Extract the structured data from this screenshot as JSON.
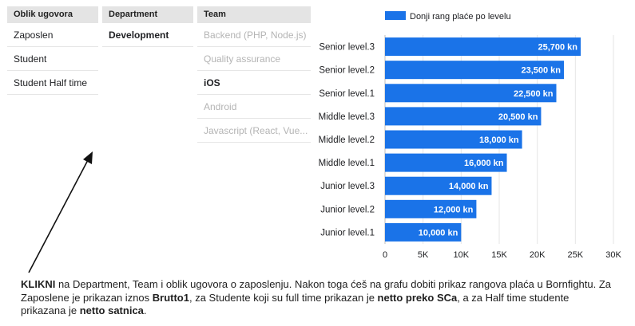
{
  "filters": {
    "oblik": {
      "header": "Oblik ugovora",
      "items": [
        "Zaposlen",
        "Student",
        "Student Half time"
      ]
    },
    "department": {
      "header": "Department",
      "items": [
        "Development"
      ]
    },
    "team": {
      "header": "Team",
      "items": [
        "Backend (PHP, Node.js)",
        "Quality assurance",
        "iOS",
        "Android",
        "Javascript (React, Vue..."
      ],
      "selected": "iOS"
    }
  },
  "chart_data": {
    "type": "bar",
    "orientation": "horizontal",
    "legend": "Donji rang plaće po levelu",
    "legend_position": "top",
    "bar_color": "#1a73e8",
    "categories": [
      "Senior level.3",
      "Senior level.2",
      "Senior level.1",
      "Middle level.3",
      "Middle level.2",
      "Middle level.1",
      "Junior level.3",
      "Junior level.2",
      "Junior level.1"
    ],
    "values": [
      25700,
      23500,
      22500,
      20500,
      18000,
      16000,
      14000,
      12000,
      10000
    ],
    "value_labels": [
      "25,700 kn",
      "23,500 kn",
      "22,500 kn",
      "20,500 kn",
      "18,000 kn",
      "16,000 kn",
      "14,000 kn",
      "12,000 kn",
      "10,000 kn"
    ],
    "xlim": [
      0,
      30000
    ],
    "xticks": [
      0,
      5000,
      10000,
      15000,
      20000,
      25000,
      30000
    ],
    "xtick_labels": [
      "0",
      "5K",
      "10K",
      "15K",
      "20K",
      "25K",
      "30K"
    ],
    "grid": true
  },
  "instructions": {
    "t1": "KLIKNI",
    "t2": " na Department, Team i oblik ugovora o zaposlenju. Nakon toga ćeš na grafu dobiti prikaz rangova plaća u Bornfightu. Za Zaposlene je prikazan iznos ",
    "t3": "Brutto1",
    "t4": ", za Studente koji su full time prikazan je ",
    "t5": "netto preko SCa",
    "t6": ", a za Half time studente prikazana je ",
    "t7": "netto satnica",
    "t8": "."
  }
}
